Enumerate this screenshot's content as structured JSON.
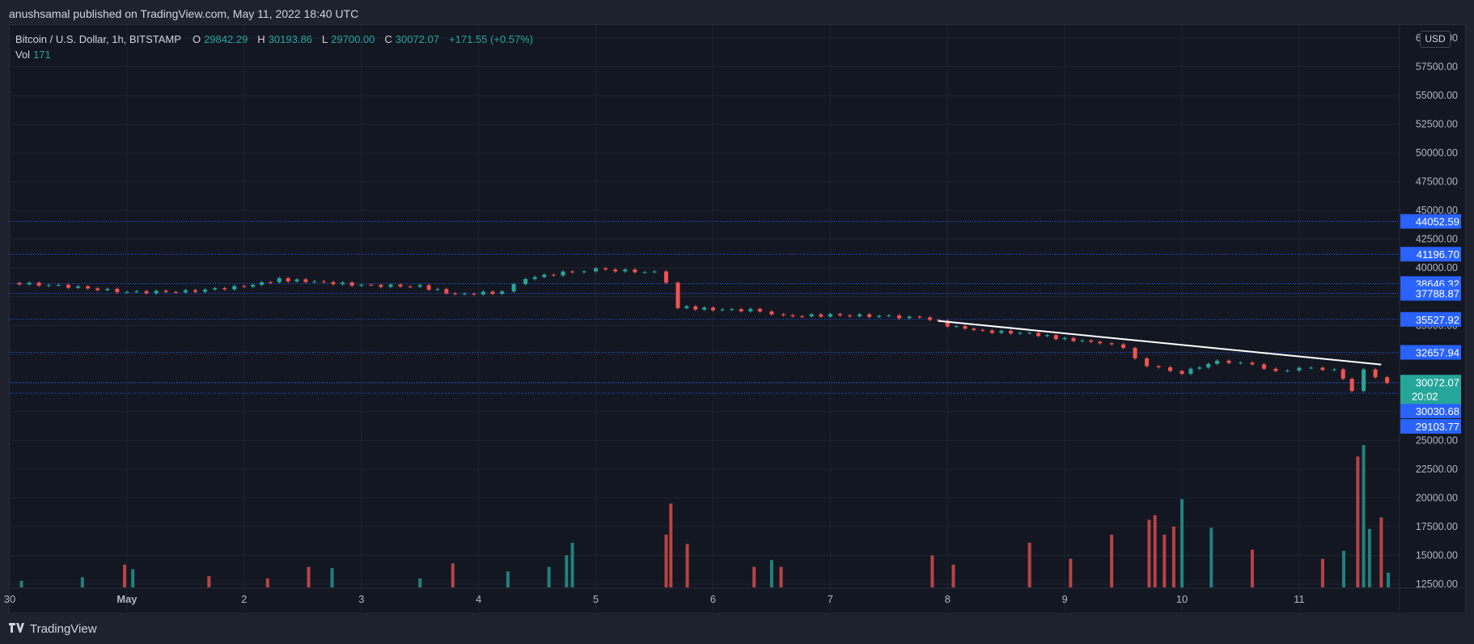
{
  "header": {
    "publisher_line": "anushsamal published on TradingView.com, May 11, 2022 18:40 UTC"
  },
  "legend": {
    "symbol": "Bitcoin / U.S. Dollar, 1h, BITSTAMP",
    "open_label": "O",
    "open": "29842.29",
    "high_label": "H",
    "high": "30193.86",
    "low_label": "L",
    "low": "29700.00",
    "close_label": "C",
    "close": "30072.07",
    "change": "+171.55 (+0.57%)",
    "vol_label": "Vol",
    "vol": "171"
  },
  "currency_button": "USD",
  "footer": {
    "brand": "TradingView"
  },
  "colors": {
    "up": "#26a69a",
    "down": "#ef5350",
    "level": "#2962ff",
    "trendline": "#ffffff",
    "bg": "#131722"
  },
  "chart_data": {
    "type": "candlestick",
    "symbol": "BTCUSD",
    "interval": "1h",
    "price_axis_ticks": [
      "60000.00",
      "57500.00",
      "55000.00",
      "52500.00",
      "50000.00",
      "47500.00",
      "45000.00",
      "42500.00",
      "40000.00",
      "37500.00",
      "35000.00",
      "32500.00",
      "30000.00",
      "27500.00",
      "25000.00",
      "22500.00",
      "20000.00",
      "17500.00",
      "15000.00",
      "12500.00"
    ],
    "ylim": [
      11500,
      61000
    ],
    "x_ticks": [
      "30",
      "May",
      "2",
      "3",
      "4",
      "5",
      "6",
      "7",
      "8",
      "9",
      "10",
      "11"
    ],
    "horizontal_levels": [
      44052.59,
      41196.7,
      38646.32,
      37788.87,
      35527.92,
      32657.94,
      30030.68,
      29103.77
    ],
    "level_labels": [
      "44052.59",
      "41196.70",
      "38646.32",
      "37788.87",
      "35527.92",
      "32657.94",
      "30030.68",
      "29103.77"
    ],
    "last_price": {
      "value": 30072.07,
      "label": "30072.07",
      "countdown": "20:02"
    },
    "trendline": [
      {
        "t": 7.92,
        "price": 35400
      },
      {
        "t": 11.7,
        "price": 31600
      }
    ],
    "price_path": [
      {
        "t": 0.0,
        "price": 38700
      },
      {
        "t": 0.5,
        "price": 38400
      },
      {
        "t": 1.0,
        "price": 37900
      },
      {
        "t": 1.5,
        "price": 37950
      },
      {
        "t": 2.0,
        "price": 38400
      },
      {
        "t": 2.3,
        "price": 39000
      },
      {
        "t": 2.6,
        "price": 38800
      },
      {
        "t": 3.0,
        "price": 38500
      },
      {
        "t": 3.5,
        "price": 38400
      },
      {
        "t": 3.8,
        "price": 37700
      },
      {
        "t": 4.2,
        "price": 37900
      },
      {
        "t": 4.4,
        "price": 39100
      },
      {
        "t": 4.8,
        "price": 39700
      },
      {
        "t": 5.0,
        "price": 39900
      },
      {
        "t": 5.5,
        "price": 39600
      },
      {
        "t": 5.6,
        "price": 38800
      },
      {
        "t": 5.7,
        "price": 36600
      },
      {
        "t": 6.0,
        "price": 36400
      },
      {
        "t": 6.4,
        "price": 36300
      },
      {
        "t": 6.6,
        "price": 35800
      },
      {
        "t": 7.0,
        "price": 35900
      },
      {
        "t": 7.5,
        "price": 35800
      },
      {
        "t": 7.85,
        "price": 35600
      },
      {
        "t": 8.0,
        "price": 35000
      },
      {
        "t": 8.3,
        "price": 34500
      },
      {
        "t": 8.7,
        "price": 34300
      },
      {
        "t": 9.0,
        "price": 33800
      },
      {
        "t": 9.3,
        "price": 33500
      },
      {
        "t": 9.5,
        "price": 33000
      },
      {
        "t": 9.7,
        "price": 31500
      },
      {
        "t": 9.9,
        "price": 31000
      },
      {
        "t": 10.0,
        "price": 30900
      },
      {
        "t": 10.3,
        "price": 31900
      },
      {
        "t": 10.5,
        "price": 31800
      },
      {
        "t": 10.7,
        "price": 31200
      },
      {
        "t": 10.9,
        "price": 31100
      },
      {
        "t": 11.1,
        "price": 31300
      },
      {
        "t": 11.3,
        "price": 31200
      },
      {
        "t": 11.45,
        "price": 29400
      },
      {
        "t": 11.55,
        "price": 31100
      },
      {
        "t": 11.65,
        "price": 30400
      },
      {
        "t": 11.75,
        "price": 30072
      }
    ],
    "volume_bars": [
      {
        "t": 0.1,
        "v": 12800,
        "dir": "up"
      },
      {
        "t": 0.62,
        "v": 13100,
        "dir": "up"
      },
      {
        "t": 0.98,
        "v": 14200,
        "dir": "down"
      },
      {
        "t": 1.05,
        "v": 13800,
        "dir": "up"
      },
      {
        "t": 1.7,
        "v": 13200,
        "dir": "down"
      },
      {
        "t": 2.2,
        "v": 13000,
        "dir": "down"
      },
      {
        "t": 2.55,
        "v": 14000,
        "dir": "down"
      },
      {
        "t": 2.75,
        "v": 13900,
        "dir": "up"
      },
      {
        "t": 3.5,
        "v": 13000,
        "dir": "up"
      },
      {
        "t": 3.78,
        "v": 14300,
        "dir": "down"
      },
      {
        "t": 4.25,
        "v": 13600,
        "dir": "up"
      },
      {
        "t": 4.6,
        "v": 14000,
        "dir": "up"
      },
      {
        "t": 4.75,
        "v": 15000,
        "dir": "up"
      },
      {
        "t": 4.8,
        "v": 16100,
        "dir": "up"
      },
      {
        "t": 5.6,
        "v": 16800,
        "dir": "down"
      },
      {
        "t": 5.64,
        "v": 19500,
        "dir": "down"
      },
      {
        "t": 5.78,
        "v": 16000,
        "dir": "down"
      },
      {
        "t": 6.35,
        "v": 14000,
        "dir": "down"
      },
      {
        "t": 6.5,
        "v": 14600,
        "dir": "up"
      },
      {
        "t": 6.58,
        "v": 14000,
        "dir": "down"
      },
      {
        "t": 7.87,
        "v": 15000,
        "dir": "down"
      },
      {
        "t": 8.05,
        "v": 14200,
        "dir": "down"
      },
      {
        "t": 8.7,
        "v": 16100,
        "dir": "down"
      },
      {
        "t": 9.05,
        "v": 14700,
        "dir": "down"
      },
      {
        "t": 9.4,
        "v": 16800,
        "dir": "down"
      },
      {
        "t": 9.72,
        "v": 18100,
        "dir": "down"
      },
      {
        "t": 9.77,
        "v": 18500,
        "dir": "down"
      },
      {
        "t": 9.85,
        "v": 16800,
        "dir": "down"
      },
      {
        "t": 9.93,
        "v": 17500,
        "dir": "down"
      },
      {
        "t": 10.0,
        "v": 19900,
        "dir": "up"
      },
      {
        "t": 10.25,
        "v": 17400,
        "dir": "up"
      },
      {
        "t": 10.6,
        "v": 15500,
        "dir": "down"
      },
      {
        "t": 11.2,
        "v": 14700,
        "dir": "down"
      },
      {
        "t": 11.38,
        "v": 15400,
        "dir": "up"
      },
      {
        "t": 11.5,
        "v": 23600,
        "dir": "down"
      },
      {
        "t": 11.55,
        "v": 24600,
        "dir": "up"
      },
      {
        "t": 11.6,
        "v": 17300,
        "dir": "up"
      },
      {
        "t": 11.7,
        "v": 18300,
        "dir": "down"
      },
      {
        "t": 11.76,
        "v": 13500,
        "dir": "up"
      }
    ]
  }
}
